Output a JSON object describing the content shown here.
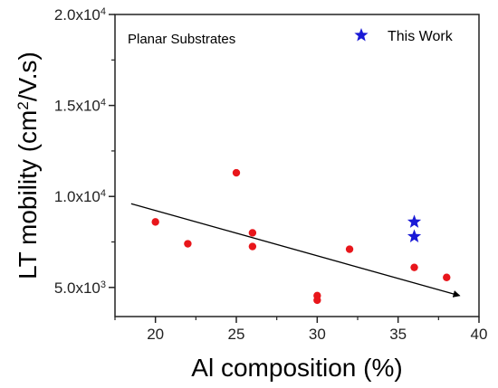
{
  "chart_data": {
    "type": "scatter",
    "annotation": "Planar Substrates",
    "xlabel": "Al composition (%)",
    "ylabel": "LT mobility (cm²/V.s)",
    "xlim": [
      17.5,
      40
    ],
    "ylim": [
      3400,
      20000
    ],
    "x_ticks": [
      20,
      25,
      30,
      35,
      40
    ],
    "y_ticks": [
      {
        "value": 5000,
        "mantissa": "5.0x10",
        "exp": "3"
      },
      {
        "value": 10000,
        "mantissa": "1.0x10",
        "exp": "4"
      },
      {
        "value": 15000,
        "mantissa": "1.5x10",
        "exp": "4"
      },
      {
        "value": 20000,
        "mantissa": "2.0x10",
        "exp": "4"
      }
    ],
    "grid": false,
    "legend_position": "top-right",
    "series": [
      {
        "marker": "circle",
        "color": "#e8161b",
        "points": [
          {
            "x": 20,
            "y": 8600
          },
          {
            "x": 22,
            "y": 7400
          },
          {
            "x": 25,
            "y": 11300
          },
          {
            "x": 26,
            "y": 8000
          },
          {
            "x": 26,
            "y": 7250
          },
          {
            "x": 30,
            "y": 4550
          },
          {
            "x": 30,
            "y": 4300
          },
          {
            "x": 32,
            "y": 7100
          },
          {
            "x": 36,
            "y": 6100
          },
          {
            "x": 38,
            "y": 5550
          }
        ]
      },
      {
        "name": "This Work",
        "marker": "star",
        "color": "#1a1ad6",
        "points": [
          {
            "x": 36,
            "y": 8600
          },
          {
            "x": 36,
            "y": 7800
          }
        ]
      }
    ],
    "trend_arrow": {
      "x1": 18.5,
      "y1": 9600,
      "x2": 38.8,
      "y2": 4550,
      "color": "#000000"
    }
  }
}
